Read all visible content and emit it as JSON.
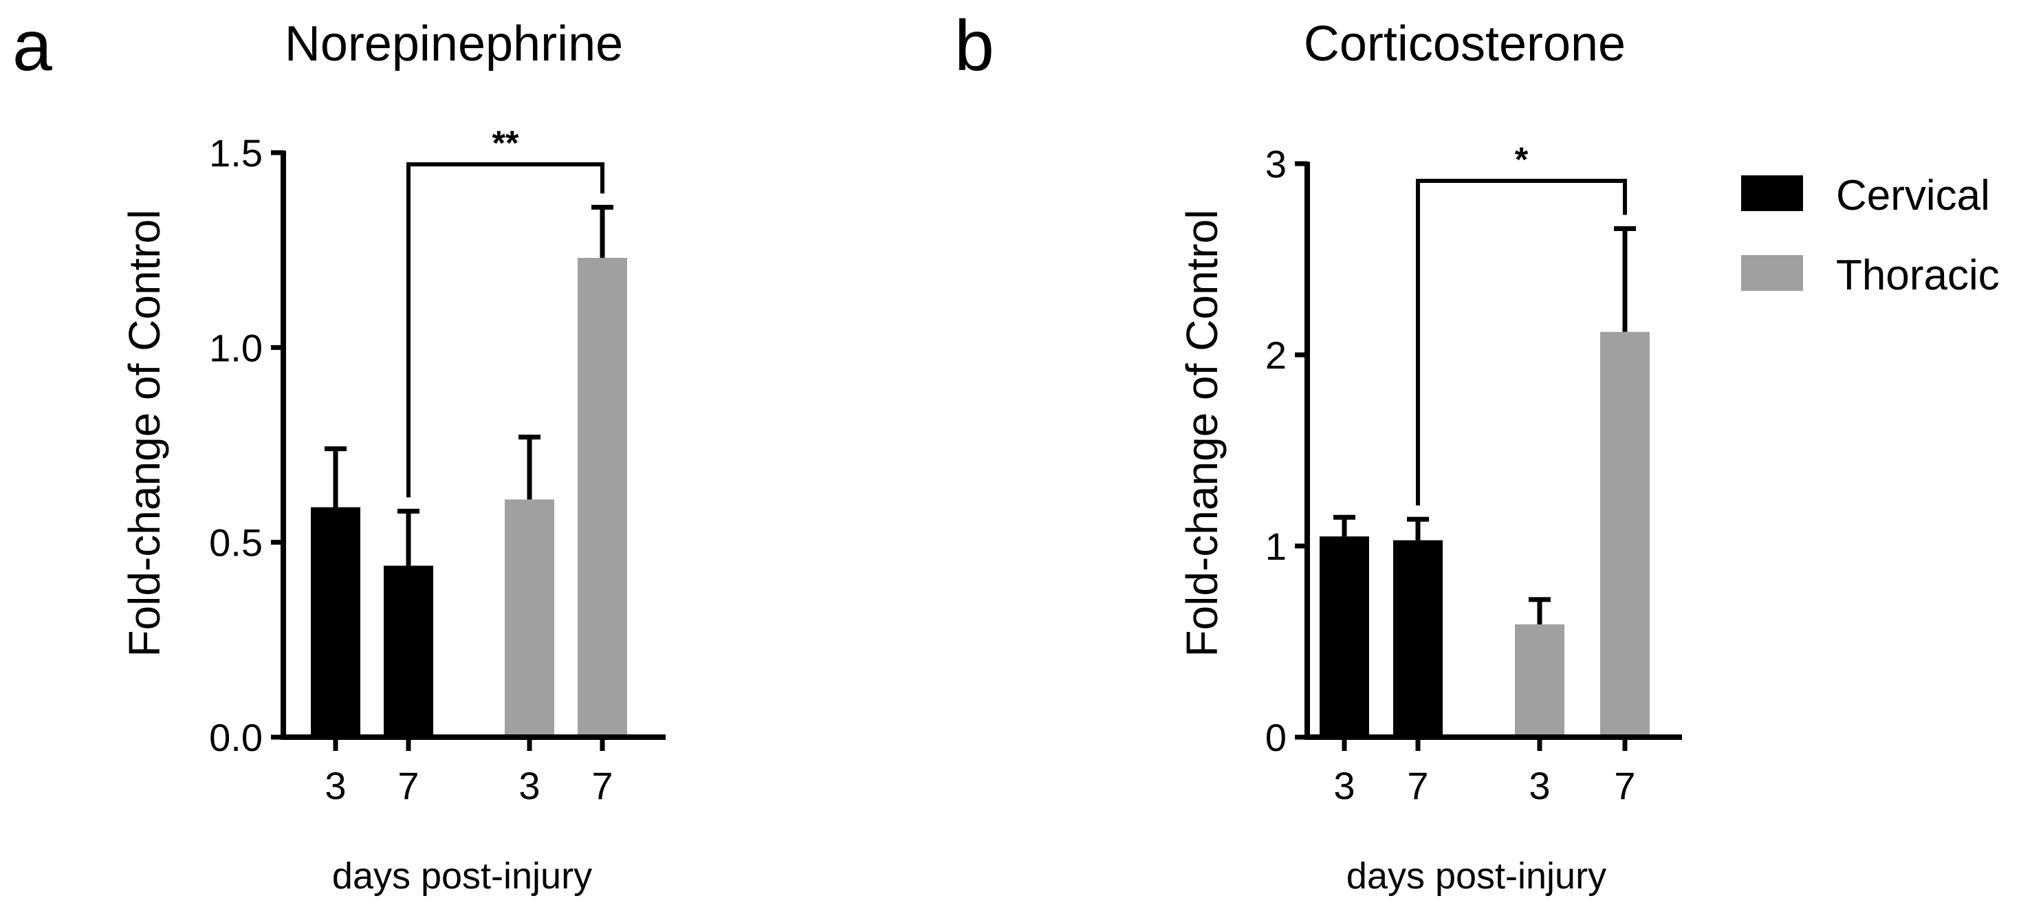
{
  "colors": {
    "cervical": "#000000",
    "thoracic": "#a0a0a0",
    "axis": "#000000"
  },
  "legend": {
    "items": [
      {
        "label": "Cervical",
        "color": "#000000"
      },
      {
        "label": "Thoracic",
        "color": "#a0a0a0"
      }
    ]
  },
  "chart_data": [
    {
      "type": "bar",
      "panel": "a",
      "title": "Norepinephrine",
      "ylabel": "Fold-change of Control",
      "xlabel": "days post-injury",
      "ylim": [
        0,
        1.5
      ],
      "yticks": [
        0.0,
        0.5,
        1.0,
        1.5
      ],
      "ytick_labels": [
        "0.0",
        "0.5",
        "1.0",
        "1.5"
      ],
      "categories": [
        "3",
        "7",
        "3",
        "7"
      ],
      "groups": [
        "Cervical",
        "Cervical",
        "Thoracic",
        "Thoracic"
      ],
      "values": [
        0.59,
        0.44,
        0.61,
        1.23
      ],
      "errors": [
        0.15,
        0.14,
        0.16,
        0.13
      ],
      "significance": {
        "from": 1,
        "to": 3,
        "label": "**",
        "y": 1.47
      }
    },
    {
      "type": "bar",
      "panel": "b",
      "title": "Corticosterone",
      "ylabel": "Fold-change of Control",
      "xlabel": "days post-injury",
      "ylim": [
        0,
        3
      ],
      "yticks": [
        0,
        1,
        2,
        3
      ],
      "ytick_labels": [
        "0",
        "1",
        "2",
        "3"
      ],
      "categories": [
        "3",
        "7",
        "3",
        "7"
      ],
      "groups": [
        "Cervical",
        "Cervical",
        "Thoracic",
        "Thoracic"
      ],
      "values": [
        1.05,
        1.03,
        0.59,
        2.12
      ],
      "errors": [
        0.1,
        0.11,
        0.13,
        0.54
      ],
      "significance": {
        "from": 1,
        "to": 3,
        "label": "*",
        "y": 2.91
      }
    }
  ]
}
